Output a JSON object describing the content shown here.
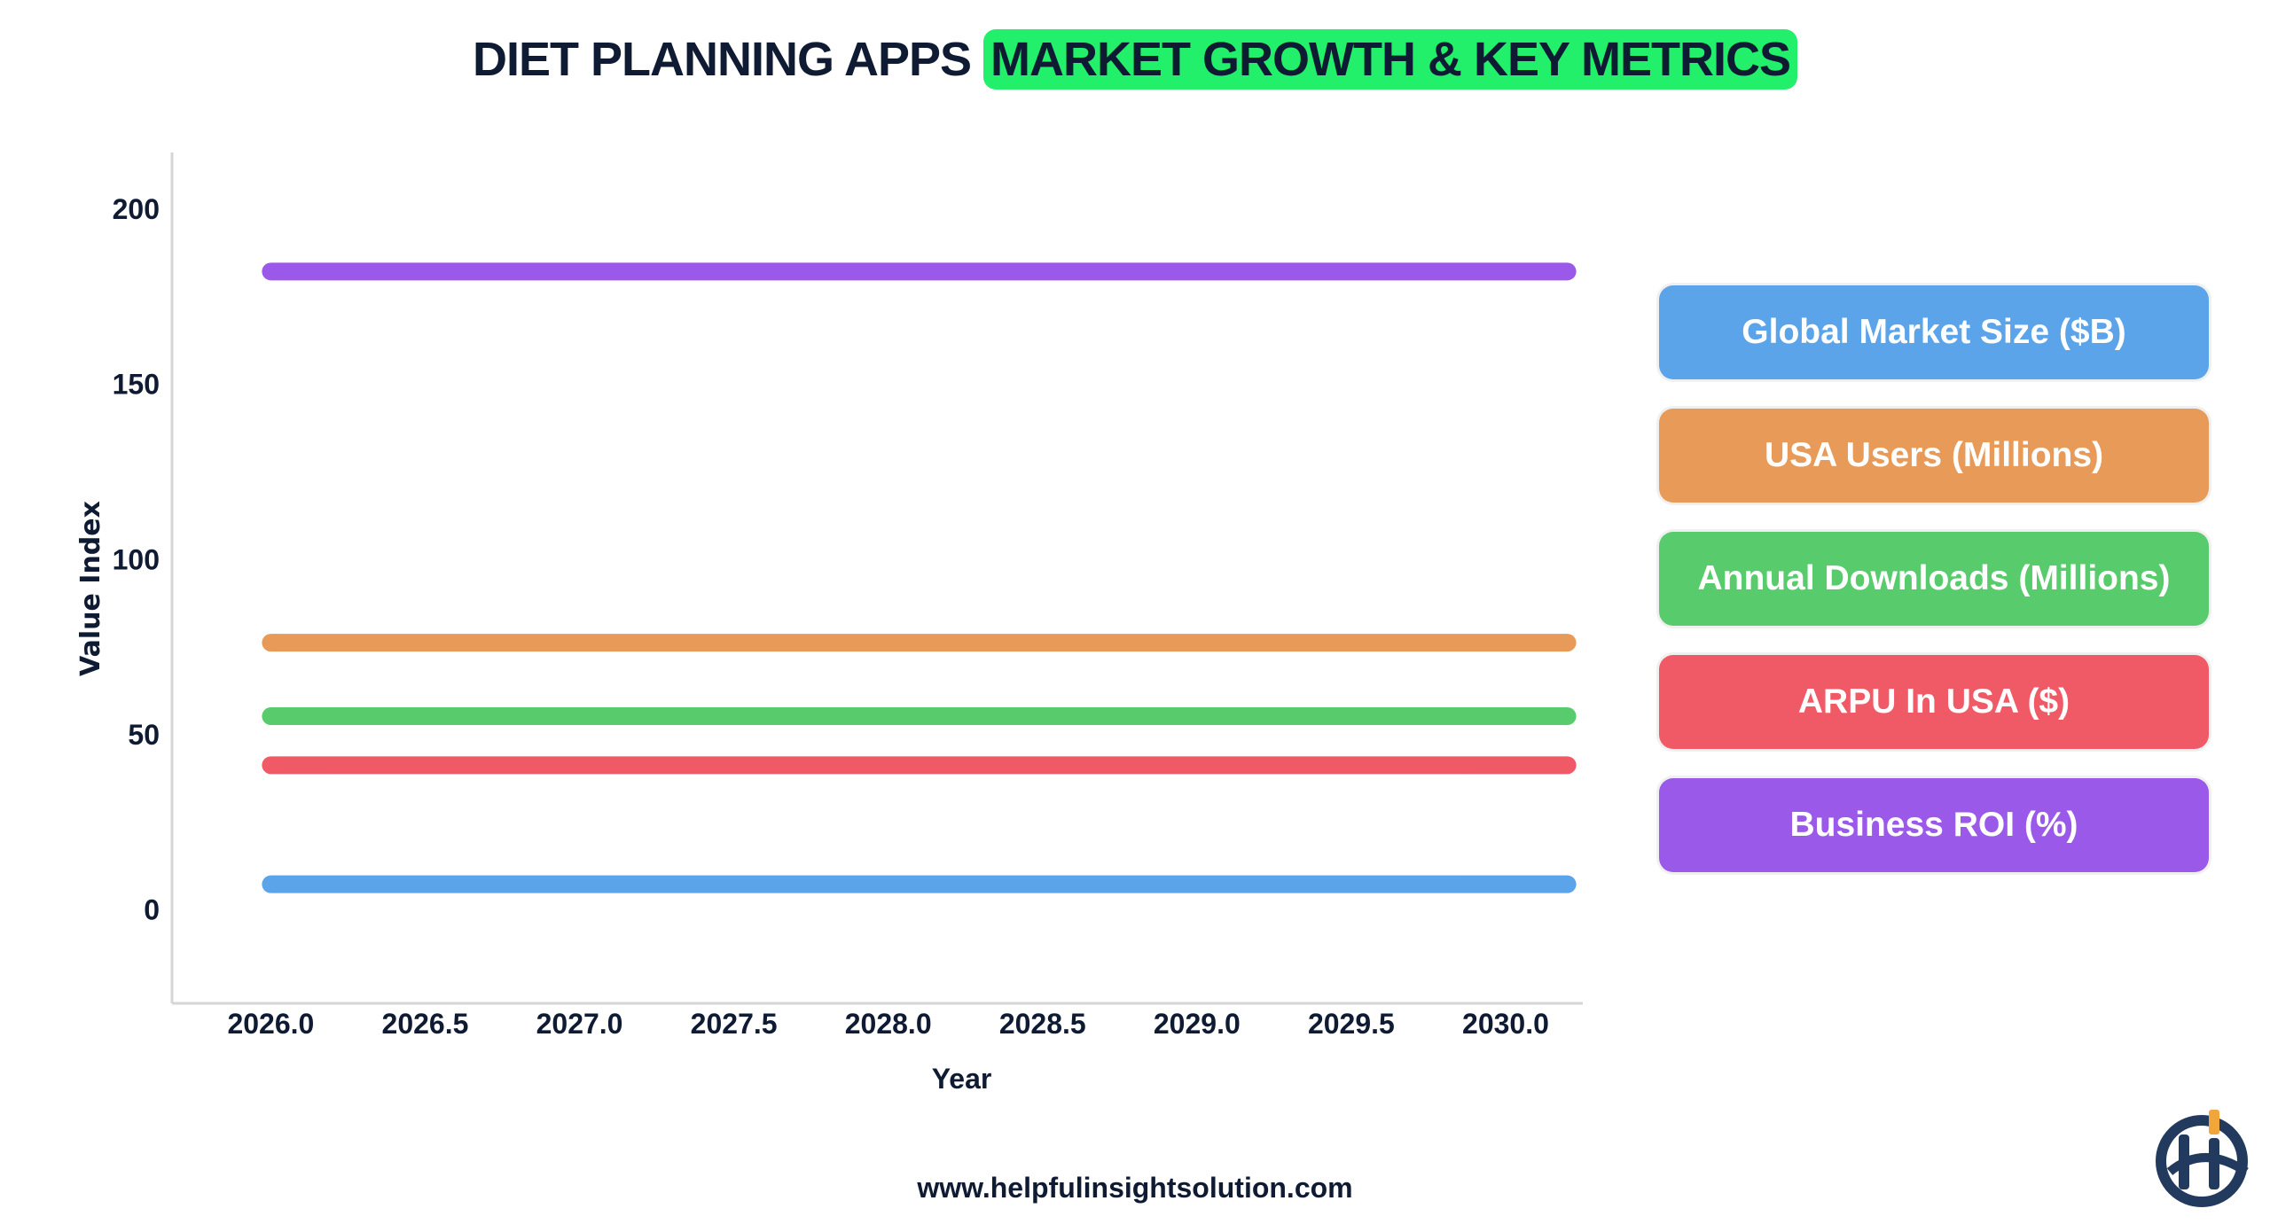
{
  "title": {
    "part1": "DIET PLANNING APPS",
    "part2": "MARKET GROWTH & KEY METRICS",
    "highlight_color": "#22f06a"
  },
  "chart_data": {
    "type": "line",
    "xlabel": "Year",
    "ylabel": "Value Index",
    "xlim": [
      2025.68,
      2030.25
    ],
    "ylim": [
      -27,
      216
    ],
    "xticks": [
      "2026.0",
      "2026.5",
      "2027.0",
      "2027.5",
      "2028.0",
      "2028.5",
      "2029.0",
      "2029.5",
      "2030.0"
    ],
    "yticks": [
      "0",
      "50",
      "100",
      "150",
      "200"
    ],
    "grid": false,
    "legend_placement": "right",
    "x": [
      2026,
      2030.2
    ],
    "series": [
      {
        "name": "Global Market Size ($B)",
        "color": "#5ba4ea",
        "values": [
          7,
          7
        ]
      },
      {
        "name": "USA Users (Millions)",
        "color": "#e89a58",
        "values": [
          76,
          76
        ]
      },
      {
        "name": "Annual Downloads (Millions)",
        "color": "#58cc6c",
        "values": [
          55,
          55
        ]
      },
      {
        "name": "ARPU In USA ($)",
        "color": "#f05a66",
        "values": [
          41,
          41
        ]
      },
      {
        "name": "Business ROI (%)",
        "color": "#9b59ea",
        "values": [
          182,
          182
        ]
      }
    ]
  },
  "footer": {
    "url": "www.helpfulinsightsolution.com"
  },
  "logo": {
    "name": "helpful-insight-logo",
    "colors": [
      "#223a5e",
      "#f0a63a"
    ]
  }
}
